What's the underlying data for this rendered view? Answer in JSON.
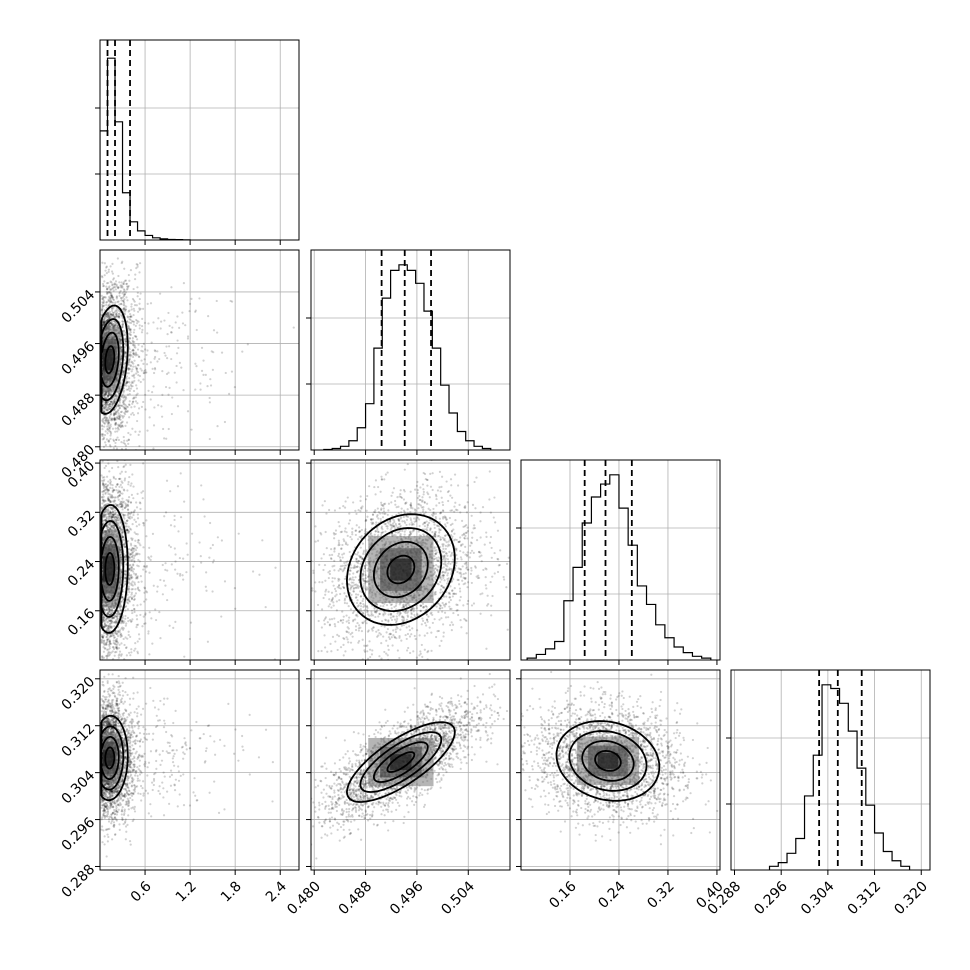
{
  "chart_data": {
    "type": "corner",
    "parameters": [
      {
        "range": [
          0.0,
          2.65
        ],
        "ticks": [
          0.6,
          1.2,
          1.8,
          2.4
        ],
        "tick_labels": [
          "0.6",
          "1.2",
          "1.8",
          "2.4"
        ],
        "quantiles": [
          0.1,
          0.2,
          0.4
        ],
        "histogram": {
          "edges": [
            0.0,
            0.1,
            0.2,
            0.3,
            0.4,
            0.5,
            0.6,
            0.7,
            0.8,
            0.9,
            1.0,
            1.1,
            1.2
          ],
          "counts": [
            0.6,
            1.0,
            0.65,
            0.26,
            0.1,
            0.05,
            0.025,
            0.012,
            0.006,
            0.003,
            0.002,
            0.001
          ]
        },
        "hist_ylim": [
          0,
          1.1
        ]
      },
      {
        "range": [
          0.4795,
          0.5105
        ],
        "ticks": [
          0.48,
          0.488,
          0.496,
          0.504
        ],
        "tick_labels": [
          "0.480",
          "0.488",
          "0.496",
          "0.504"
        ],
        "quantiles": [
          0.4905,
          0.4941,
          0.4982
        ],
        "histogram": {
          "edges": [
            0.4815,
            0.4828,
            0.4841,
            0.4854,
            0.4867,
            0.488,
            0.4893,
            0.4906,
            0.4919,
            0.4932,
            0.4945,
            0.4958,
            0.4971,
            0.4984,
            0.4997,
            0.501,
            0.5023,
            0.5036,
            0.5049,
            0.5062,
            0.5075
          ],
          "counts": [
            0.003,
            0.008,
            0.02,
            0.05,
            0.12,
            0.25,
            0.55,
            0.82,
            0.97,
            1.0,
            0.97,
            0.9,
            0.75,
            0.55,
            0.35,
            0.2,
            0.1,
            0.05,
            0.02,
            0.008
          ]
        },
        "hist_ylim": [
          0,
          1.08
        ]
      },
      {
        "range": [
          0.08,
          0.405
        ],
        "ticks": [
          0.16,
          0.24,
          0.32,
          0.4
        ],
        "tick_labels": [
          "0.16",
          "0.24",
          "0.32",
          "0.40"
        ],
        "quantiles": [
          0.184,
          0.218,
          0.261
        ],
        "histogram": {
          "edges": [
            0.09,
            0.105,
            0.12,
            0.135,
            0.15,
            0.165,
            0.18,
            0.195,
            0.21,
            0.225,
            0.24,
            0.255,
            0.27,
            0.285,
            0.3,
            0.315,
            0.33,
            0.345,
            0.36,
            0.375,
            0.39
          ],
          "counts": [
            0.01,
            0.03,
            0.06,
            0.1,
            0.32,
            0.5,
            0.74,
            0.88,
            0.95,
            1.0,
            0.82,
            0.62,
            0.4,
            0.3,
            0.19,
            0.12,
            0.07,
            0.04,
            0.02,
            0.01
          ]
        },
        "hist_ylim": [
          0,
          1.08
        ]
      },
      {
        "range": [
          0.2874,
          0.3215
        ],
        "ticks": [
          0.288,
          0.296,
          0.304,
          0.312,
          0.32
        ],
        "tick_labels": [
          "0.288",
          "0.296",
          "0.304",
          "0.312",
          "0.320"
        ],
        "quantiles": [
          0.3025,
          0.3057,
          0.3098
        ],
        "histogram": {
          "edges": [
            0.294,
            0.2955,
            0.297,
            0.2985,
            0.3,
            0.3015,
            0.303,
            0.3045,
            0.306,
            0.3075,
            0.309,
            0.3105,
            0.312,
            0.3135,
            0.315,
            0.3165,
            0.318
          ],
          "counts": [
            0.02,
            0.04,
            0.09,
            0.17,
            0.4,
            0.62,
            1.0,
            0.98,
            0.9,
            0.75,
            0.55,
            0.35,
            0.2,
            0.1,
            0.05,
            0.02
          ]
        },
        "hist_ylim": [
          0,
          1.08
        ]
      }
    ],
    "pair_panels": [
      {
        "row": 1,
        "col": 0,
        "x_param": 0,
        "y_param": 1,
        "center": [
          0.13,
          0.4935
        ],
        "spread": [
          0.12,
          0.0042
        ],
        "rho": 0.25
      },
      {
        "row": 2,
        "col": 0,
        "x_param": 0,
        "y_param": 2,
        "center": [
          0.13,
          0.228
        ],
        "spread": [
          0.12,
          0.052
        ],
        "rho": 0.05
      },
      {
        "row": 2,
        "col": 1,
        "x_param": 1,
        "y_param": 2,
        "center": [
          0.4935,
          0.227
        ],
        "spread": [
          0.0042,
          0.045
        ],
        "rho": 0.2
      },
      {
        "row": 3,
        "col": 0,
        "x_param": 0,
        "y_param": 3,
        "center": [
          0.13,
          0.3065
        ],
        "spread": [
          0.12,
          0.0036
        ],
        "rho": 0.05
      },
      {
        "row": 3,
        "col": 1,
        "x_param": 1,
        "y_param": 3,
        "center": [
          0.4935,
          0.3058
        ],
        "spread": [
          0.0042,
          0.0034
        ],
        "rho": 0.75
      },
      {
        "row": 3,
        "col": 2,
        "x_param": 2,
        "y_param": 3,
        "center": [
          0.222,
          0.306
        ],
        "spread": [
          0.042,
          0.0034
        ],
        "rho": -0.15
      }
    ],
    "contour_levels": [
      "0.5-sigma",
      "1-sigma",
      "1.5-sigma",
      "2-sigma"
    ],
    "grid": true,
    "colors": {
      "points": "#000000",
      "density_max": "#000000",
      "density_min": "#ffffff",
      "grid": "#b0b0b0"
    }
  }
}
